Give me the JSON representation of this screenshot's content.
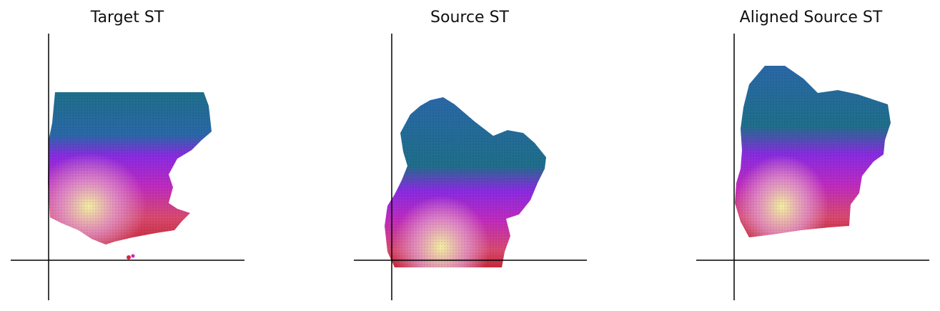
{
  "panels": [
    {
      "title": "Target ST"
    },
    {
      "title": "Source ST"
    },
    {
      "title": "Aligned Source ST"
    }
  ],
  "colors": {
    "axis": "#000000",
    "teal_blue": "#1f6f8b",
    "violet": "#8a2be2",
    "magenta": "#c02bbf",
    "red": "#d7263d",
    "light_yellow": "#f3f0a0"
  }
}
